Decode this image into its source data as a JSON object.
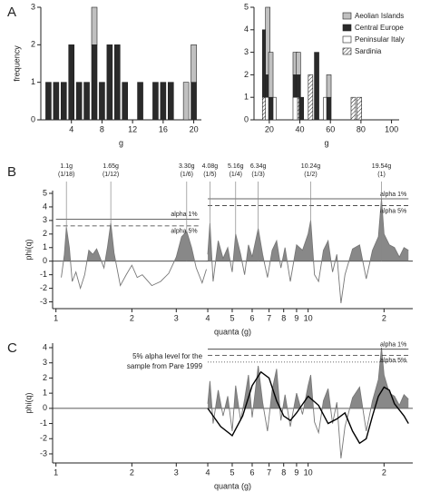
{
  "chart_data": [
    {
      "type": "bar",
      "panel": "A",
      "x_label": "g",
      "y_label": "frequency",
      "xlim": [
        0,
        21
      ],
      "xticks": [
        4,
        8,
        12,
        16,
        20
      ],
      "ylim": [
        0,
        3
      ],
      "yticks": [
        0,
        1,
        2,
        3
      ],
      "x": [
        1,
        2,
        3,
        4,
        5,
        6,
        7,
        8,
        9,
        10,
        11,
        13,
        15,
        16,
        17,
        19,
        20
      ],
      "series": [
        {
          "color": "#c0c0c0",
          "values": [
            0,
            0,
            0,
            0,
            0,
            0,
            1,
            0,
            0,
            0,
            0,
            0,
            0,
            0,
            0,
            1,
            1
          ]
        },
        {
          "color": "#2a2a2a",
          "values": [
            1,
            1,
            1,
            2,
            1,
            1,
            2,
            1,
            2,
            2,
            1,
            1,
            1,
            1,
            1,
            0,
            1
          ]
        }
      ]
    },
    {
      "type": "bar",
      "x_label": "g",
      "legend": "upper right",
      "xlim": [
        10,
        105
      ],
      "xticks": [
        20,
        40,
        60,
        80,
        100
      ],
      "ylim": [
        0,
        5
      ],
      "yticks": [
        0,
        1,
        2,
        3,
        4,
        5
      ],
      "x": [
        17,
        19,
        21,
        23,
        37,
        39,
        41,
        47,
        51,
        57,
        59,
        75,
        79
      ],
      "series": [
        {
          "name": "Aeolian Islands",
          "color": "#c0c0c0",
          "values": [
            0,
            3,
            2,
            0,
            1,
            1,
            0,
            0,
            0,
            0,
            1,
            0,
            0
          ]
        },
        {
          "name": "Central Europe",
          "color": "#2a2a2a",
          "values": [
            3,
            1,
            1,
            0,
            1,
            1,
            1,
            0,
            3,
            0,
            1,
            0,
            0
          ]
        },
        {
          "name": "Peninsular Italy",
          "color": "#ffffff",
          "values": [
            0,
            1,
            0,
            1,
            1,
            0,
            0,
            0,
            0,
            1,
            0,
            0,
            0
          ]
        },
        {
          "name": "Sardinia",
          "color": "#ffffff",
          "pattern": "hatch",
          "values": [
            1,
            0,
            0,
            0,
            0,
            1,
            0,
            2,
            0,
            0,
            0,
            1,
            1
          ]
        }
      ]
    },
    {
      "type": "line",
      "panel": "B",
      "x_label": "quanta (g)",
      "y_label": "phi(q)",
      "xscale": "log",
      "zero_line": true,
      "xlim": [
        0.97,
        26
      ],
      "xticks": [
        1,
        2,
        3,
        4,
        5,
        6,
        7,
        8,
        9,
        10,
        {
          "value": 20,
          "label": "2"
        }
      ],
      "ylim": [
        -3.5,
        5.2
      ],
      "yticks": [
        -3,
        -2,
        -1,
        0,
        1,
        2,
        3,
        4,
        5
      ],
      "series": [
        {
          "color": "#777777",
          "fill": "#888888",
          "x": [
            1.05,
            1.08,
            1.1,
            1.13,
            1.16,
            1.2,
            1.25,
            1.3,
            1.35,
            1.4,
            1.45,
            1.5,
            1.55,
            1.6,
            1.65,
            1.7,
            1.8,
            1.9,
            2.0,
            2.1,
            2.2,
            2.4,
            2.6,
            2.8,
            3.0,
            3.15,
            3.3,
            3.45,
            3.6,
            3.8,
            3.95,
            3.97,
            4.0,
            4.08,
            4.2,
            4.4,
            4.6,
            4.8,
            5.0,
            5.16,
            5.4,
            5.6,
            5.8,
            6.0,
            6.34,
            6.6,
            6.9,
            7.2,
            7.5,
            7.8,
            8.1,
            8.5,
            9.0,
            9.5,
            10.0,
            10.24,
            10.6,
            11,
            11.5,
            12,
            12.5,
            13,
            13.5,
            14,
            15,
            16,
            17,
            18,
            19,
            19.54,
            20,
            21,
            22,
            23,
            24,
            25
          ],
          "values": [
            -1.2,
            0.5,
            2.5,
            1.0,
            -1.5,
            -0.8,
            -2.0,
            -1.0,
            0.8,
            0.5,
            0.9,
            0.2,
            -0.5,
            1.0,
            2.8,
            0.6,
            -1.8,
            -1.0,
            -0.3,
            -1.2,
            -1.0,
            -1.8,
            -1.5,
            -0.9,
            0.3,
            1.8,
            2.2,
            1.0,
            -0.5,
            -1.6,
            -0.6,
            null,
            0.5,
            2.8,
            -1.5,
            1.5,
            0.2,
            1.0,
            -0.8,
            2.0,
            0.5,
            -1.0,
            1.2,
            0.3,
            2.4,
            0.5,
            -1.2,
            0.8,
            1.5,
            -0.5,
            1.0,
            -1.5,
            1.2,
            0.8,
            2.0,
            3.0,
            -1.0,
            -1.5,
            0.8,
            1.5,
            -0.8,
            0.5,
            -3.1,
            -1.0,
            0.9,
            1.2,
            -1.3,
            0.8,
            1.8,
            4.6,
            2.0,
            1.2,
            1.0,
            0.3,
            1.0,
            0.8
          ]
        }
      ],
      "reference_lines": [
        {
          "label": "alpha 1%",
          "value": 3.1,
          "x": [
            1,
            3.7
          ],
          "style": "solid"
        },
        {
          "label": "alpha 5%",
          "value": 2.6,
          "x": [
            1,
            3.7
          ],
          "style": "dashed"
        },
        {
          "label": "alpha 1%",
          "value": 4.6,
          "x": [
            4,
            25
          ],
          "style": "solid"
        },
        {
          "label": "alpha 5%",
          "value": 4.1,
          "x": [
            4,
            25
          ],
          "style": "dashed"
        }
      ],
      "annotations": [
        {
          "x": 1.1,
          "label": "1.1g",
          "sublabel": "(1/18)"
        },
        {
          "x": 1.65,
          "label": "1.65g",
          "sublabel": "(1/12)"
        },
        {
          "x": 3.3,
          "label": "3.30g",
          "sublabel": "(1/6)"
        },
        {
          "x": 4.08,
          "label": "4.08g",
          "sublabel": "(1/5)"
        },
        {
          "x": 5.16,
          "label": "5.16g",
          "sublabel": "(1/4)"
        },
        {
          "x": 6.34,
          "label": "6.34g",
          "sublabel": "(1/3)"
        },
        {
          "x": 10.24,
          "label": "10.24g",
          "sublabel": "(1/2)"
        },
        {
          "x": 19.54,
          "label": "19.54g",
          "sublabel": "(1)"
        }
      ]
    },
    {
      "type": "line",
      "panel": "C",
      "x_label": "quanta (g)",
      "y_label": "phi(q)",
      "xscale": "log",
      "zero_line": true,
      "xlim": [
        0.97,
        26
      ],
      "xticks": [
        1,
        2,
        3,
        4,
        5,
        6,
        7,
        8,
        9,
        10,
        {
          "value": 20,
          "label": "2"
        }
      ],
      "ylim": [
        -3.6,
        4.3
      ],
      "yticks": [
        -3,
        -2,
        -1,
        0,
        1,
        2,
        3,
        4
      ],
      "series": [
        {
          "color": "#777777",
          "fill": "#888888",
          "x": [
            4.0,
            4.08,
            4.2,
            4.4,
            4.6,
            4.8,
            5.0,
            5.16,
            5.4,
            5.6,
            5.8,
            6.0,
            6.34,
            6.6,
            6.9,
            7.2,
            7.5,
            7.8,
            8.1,
            8.5,
            9.0,
            9.5,
            10.0,
            10.24,
            10.6,
            11,
            11.5,
            12,
            12.5,
            13,
            13.5,
            14,
            15,
            16,
            17,
            18,
            19,
            19.54,
            20,
            21,
            22,
            23,
            24,
            25
          ],
          "values": [
            0.3,
            1.8,
            -1.0,
            1.2,
            -0.5,
            0.8,
            -1.5,
            1.5,
            -0.8,
            0.6,
            2.2,
            -0.6,
            2.8,
            0.4,
            -1.5,
            1.2,
            2.6,
            -0.8,
            0.9,
            -1.2,
            1.0,
            -0.4,
            1.5,
            2.2,
            -0.9,
            -1.6,
            0.5,
            1.3,
            -1.0,
            0.4,
            -3.3,
            -1.2,
            0.7,
            1.4,
            -1.5,
            0.5,
            1.9,
            4.0,
            2.2,
            1.0,
            0.8,
            0.2,
            0.9,
            0.6
          ]
        },
        {
          "color": "#000000",
          "x": [
            4,
            4.5,
            5,
            5.5,
            6,
            6.5,
            7,
            7.5,
            8,
            8.5,
            9,
            10,
            11,
            12,
            13,
            14,
            15,
            16,
            17,
            18,
            19,
            20,
            21,
            22,
            24,
            25
          ],
          "values": [
            0,
            -1.2,
            -1.8,
            -0.5,
            1.5,
            2.4,
            2.0,
            0.5,
            -0.5,
            -0.8,
            -0.3,
            0.8,
            0.2,
            -1.0,
            -0.7,
            -0.3,
            -1.5,
            -2.3,
            -2.0,
            -0.5,
            0.8,
            1.4,
            1.2,
            0.3,
            -0.5,
            -1.0
          ]
        }
      ],
      "reference_lines": [
        {
          "label": "alpha 1%",
          "value": 3.9,
          "x": [
            4,
            25
          ],
          "style": "solid"
        },
        {
          "label": "alpha 5%",
          "value": 3.5,
          "x": [
            4,
            25
          ],
          "style": "dashed"
        },
        {
          "label_lines": [
            "5% alpha level for the",
            "sample from Pare 1999"
          ],
          "value": 3.05,
          "x": [
            4,
            25
          ],
          "style": "dotted"
        }
      ]
    }
  ]
}
